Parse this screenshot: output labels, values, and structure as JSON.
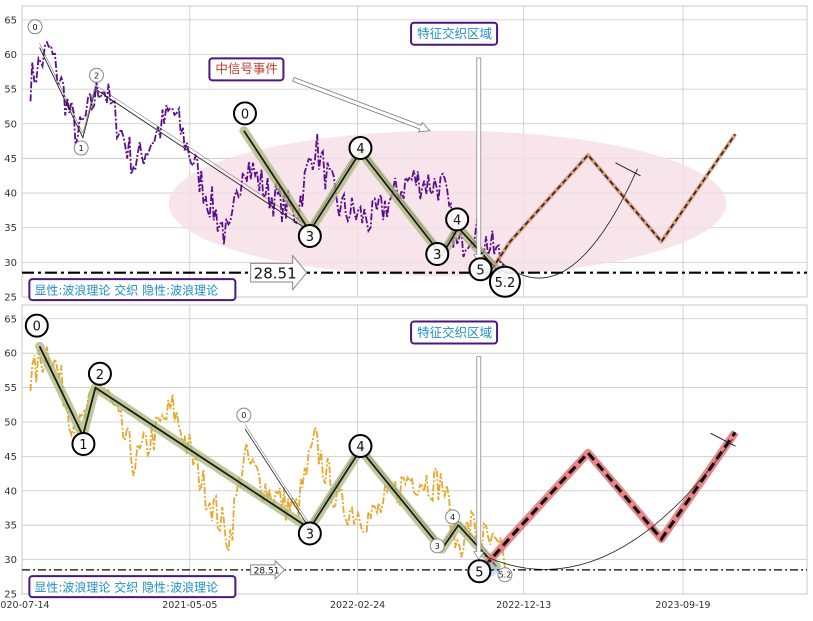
{
  "chart_data": [
    {
      "id": "top",
      "type": "line",
      "title": "",
      "xlabel": "",
      "ylabel": "",
      "ylim": [
        25,
        67
      ],
      "yticks": [
        25,
        30,
        35,
        40,
        45,
        50,
        55,
        60,
        65
      ],
      "grid": true,
      "price_series": {
        "color": "#5b0f8c",
        "style": "dashdot",
        "start": "2020-07-29",
        "end": "2022-11-10",
        "knots": [
          [
            0,
            56
          ],
          [
            0.04,
            61
          ],
          [
            0.1,
            48
          ],
          [
            0.15,
            56
          ],
          [
            0.22,
            44
          ],
          [
            0.3,
            52
          ],
          [
            0.37,
            40
          ],
          [
            0.42,
            33
          ],
          [
            0.45,
            45
          ],
          [
            0.5,
            40
          ],
          [
            0.56,
            37
          ],
          [
            0.6,
            47
          ],
          [
            0.65,
            38
          ],
          [
            0.72,
            36
          ],
          [
            0.8,
            42
          ],
          [
            0.87,
            41
          ],
          [
            0.9,
            32
          ],
          [
            0.93,
            35
          ],
          [
            1,
            30
          ]
        ]
      },
      "overlay_wave": {
        "color": "#222222",
        "points": [
          [
            "2020-08-14",
            61
          ],
          [
            "2020-10-29",
            48
          ],
          [
            "2020-11-20",
            55
          ],
          [
            "2021-12-02",
            34.5
          ],
          [
            "2022-03-01",
            46
          ],
          [
            "2022-07-22",
            31
          ],
          [
            "2022-08-20",
            35
          ],
          [
            "2022-10-26",
            29
          ]
        ]
      },
      "highlight_waves": [
        {
          "color": "#a9b77a",
          "points": [
            [
              "2021-08-08",
              49
            ],
            [
              "2021-12-02",
              34.5
            ],
            [
              "2022-03-01",
              46
            ],
            [
              "2022-07-22",
              31
            ],
            [
              "2022-08-20",
              35
            ],
            [
              "2022-10-26",
              29
            ],
            [
              "2022-11-14",
              28.5
            ]
          ]
        }
      ],
      "forecast": {
        "color": "#d9946e",
        "dash_color": "#222222",
        "points": [
          [
            "2022-10-10",
            28
          ],
          [
            "2022-11-19",
            33
          ],
          [
            "2023-04-05",
            45.5
          ],
          [
            "2023-08-12",
            33
          ],
          [
            "2023-12-20",
            48.5
          ]
        ],
        "arc": {
          "from": [
            "2022-10-28",
            30.5
          ],
          "to": [
            "2023-07-01",
            43.5
          ]
        }
      },
      "reference_line": {
        "value": 28.51,
        "label": "28.51",
        "label_date": "2021-08-20",
        "arrow_size": "large"
      },
      "labels": [
        {
          "text": "0",
          "date": "2020-08-06",
          "y": 64,
          "size": "small"
        },
        {
          "text": "1",
          "date": "2020-10-26",
          "y": 46.5,
          "size": "small"
        },
        {
          "text": "2",
          "date": "2020-11-22",
          "y": 57,
          "size": "small"
        },
        {
          "text": "0",
          "date": "2021-08-10",
          "y": 51.5,
          "size": "large"
        },
        {
          "text": "3",
          "date": "2021-12-02",
          "y": 33.8,
          "size": "large"
        },
        {
          "text": "4",
          "date": "2022-03-01",
          "y": 46.5,
          "size": "large"
        },
        {
          "text": "3",
          "date": "2022-07-14",
          "y": 31.2,
          "size": "large"
        },
        {
          "text": "4",
          "date": "2022-08-18",
          "y": 36.2,
          "size": "large"
        },
        {
          "text": "5",
          "date": "2022-09-28",
          "y": 29,
          "size": "large"
        },
        {
          "text": "5.2",
          "date": "2022-11-10",
          "y": 27.2,
          "size": "large"
        }
      ],
      "ellipse": {
        "center": [
          "2022-08-01",
          38.5
        ],
        "rx_days": 490,
        "ry": 10.5,
        "color": "#f6dfe6"
      },
      "event": {
        "text": "中信号事件",
        "date": "2021-06-12",
        "y": 58,
        "arrow_to": [
          "2022-07-01",
          49
        ]
      },
      "feature_box": {
        "text": "特征交织区域",
        "date": "2022-06-05",
        "y": 63
      },
      "vertical_marker": {
        "date": "2022-09-25",
        "from": 59.5,
        "to": 30
      },
      "legend_box": {
        "text": "显性:波浪理论 交织 隐性:波浪理论",
        "date": "2020-08-03",
        "y": 26
      }
    },
    {
      "id": "bottom",
      "type": "line",
      "title": "",
      "xlabel": "",
      "ylabel": "",
      "ylim": [
        25,
        67
      ],
      "yticks": [
        25,
        30,
        35,
        40,
        45,
        50,
        55,
        60,
        65
      ],
      "xticks": [
        "2020-07-14",
        "2021-05-05",
        "2022-02-24",
        "2022-12-13",
        "2023-09-19"
      ],
      "grid": true,
      "price_series": {
        "color": "#e6a830",
        "style": "dashdot",
        "start": "2020-07-29",
        "end": "2022-11-10",
        "knots": [
          [
            0,
            56
          ],
          [
            0.04,
            61
          ],
          [
            0.1,
            48
          ],
          [
            0.15,
            56
          ],
          [
            0.22,
            44
          ],
          [
            0.3,
            52
          ],
          [
            0.37,
            40
          ],
          [
            0.42,
            33
          ],
          [
            0.45,
            45
          ],
          [
            0.5,
            40
          ],
          [
            0.56,
            37
          ],
          [
            0.6,
            47
          ],
          [
            0.65,
            38
          ],
          [
            0.72,
            36
          ],
          [
            0.8,
            42
          ],
          [
            0.87,
            41
          ],
          [
            0.9,
            32
          ],
          [
            0.93,
            35
          ],
          [
            1,
            30
          ]
        ]
      },
      "overlay_wave": {
        "color": "#222222",
        "points": [
          [
            "2021-08-10",
            49
          ],
          [
            "2021-12-02",
            34.5
          ],
          [
            "2022-03-01",
            46
          ],
          [
            "2022-07-22",
            31.5
          ],
          [
            "2022-08-20",
            35
          ],
          [
            "2022-10-26",
            29
          ]
        ]
      },
      "highlight_waves": [
        {
          "color": "#a9b77a",
          "points": [
            [
              "2020-08-14",
              61
            ],
            [
              "2020-10-29",
              48
            ],
            [
              "2020-11-20",
              55
            ],
            [
              "2021-12-02",
              34.5
            ],
            [
              "2022-03-01",
              46
            ],
            [
              "2022-07-22",
              31.5
            ],
            [
              "2022-08-20",
              35
            ],
            [
              "2022-10-26",
              29
            ]
          ]
        }
      ],
      "forecast": {
        "color": "#e9787c",
        "dash_color": "#111111",
        "thick": true,
        "points": [
          [
            "2022-10-05",
            29
          ],
          [
            "2022-11-17",
            33
          ],
          [
            "2023-04-05",
            45.5
          ],
          [
            "2023-08-12",
            33
          ],
          [
            "2023-12-20",
            48.5
          ]
        ],
        "arc": {
          "from": [
            "2022-10-06",
            30.5
          ],
          "to": [
            "2023-12-15",
            47.5
          ]
        }
      },
      "reference_line": {
        "value": 28.51,
        "label": "28.51",
        "label_date": "2021-08-20",
        "arrow_size": "small"
      },
      "labels": [
        {
          "text": "0",
          "date": "2020-08-09",
          "y": 64,
          "size": "large"
        },
        {
          "text": "1",
          "date": "2020-10-30",
          "y": 46.8,
          "size": "large"
        },
        {
          "text": "2",
          "date": "2020-11-28",
          "y": 57,
          "size": "large"
        },
        {
          "text": "0",
          "date": "2021-08-08",
          "y": 51,
          "size": "small"
        },
        {
          "text": "3",
          "date": "2021-12-02",
          "y": 33.8,
          "size": "large"
        },
        {
          "text": "4",
          "date": "2022-03-01",
          "y": 46.5,
          "size": "large"
        },
        {
          "text": "3",
          "date": "2022-07-14",
          "y": 32,
          "size": "small"
        },
        {
          "text": "4",
          "date": "2022-08-10",
          "y": 36.2,
          "size": "small"
        },
        {
          "text": "5",
          "date": "2022-09-26",
          "y": 28.3,
          "size": "large"
        },
        {
          "text": "5.2",
          "date": "2022-11-10",
          "y": 27.8,
          "size": "small"
        }
      ],
      "ellipse": null,
      "event": null,
      "feature_box": {
        "text": "特征交织区域",
        "date": "2022-06-05",
        "y": 63
      },
      "vertical_marker": {
        "date": "2022-09-25",
        "from": 59.5,
        "to": 30
      },
      "legend_box": {
        "text": "显性:波浪理论 交织 隐性:波浪理论",
        "date": "2020-08-03",
        "y": 26
      }
    }
  ],
  "colors": {
    "grid": "#c8c8c8",
    "axis_text": "#333333",
    "box_border": "#4a1780",
    "box_text": "#1d8fc4",
    "event_text": "#c0392b"
  }
}
